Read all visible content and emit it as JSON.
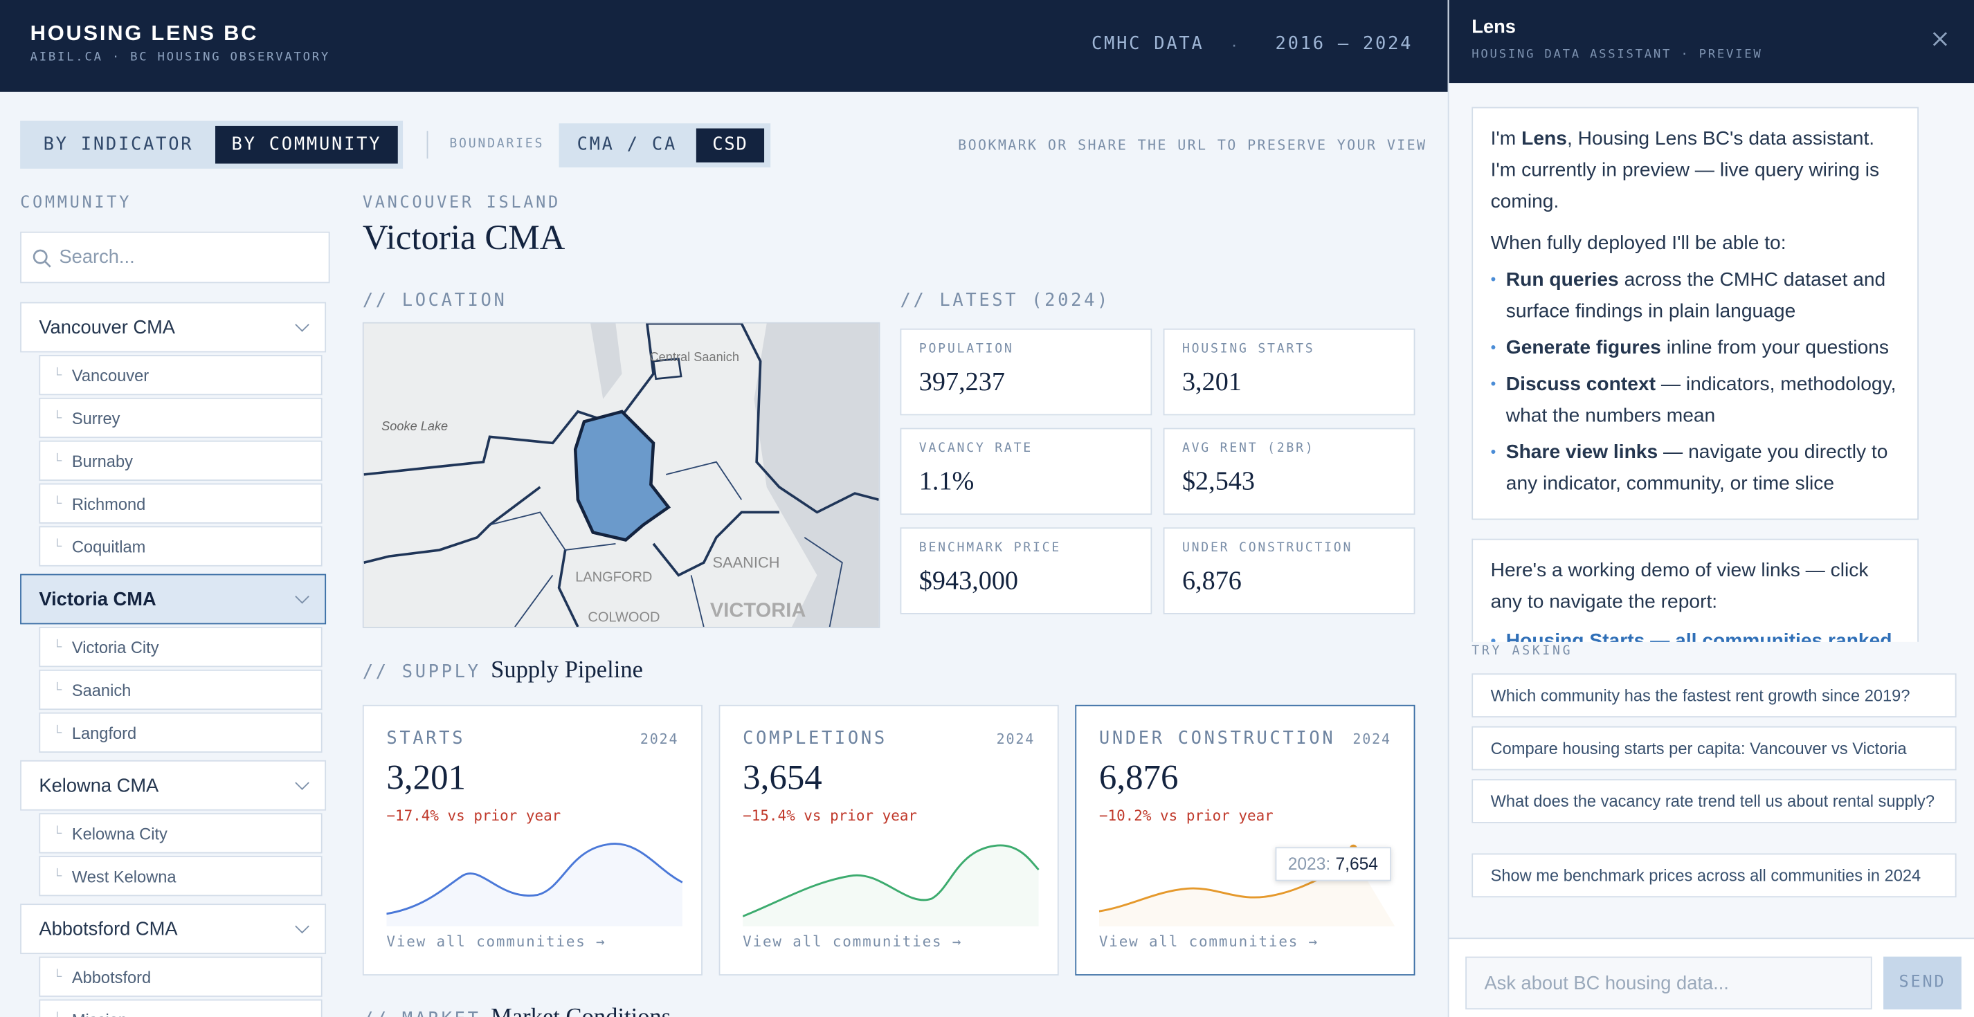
{
  "header": {
    "title": "HOUSING LENS BC",
    "subtitle": "AIBIL.CA · BC HOUSING OBSERVATORY",
    "source": "CMHC DATA",
    "separator": "·",
    "range": "2016 – 2024"
  },
  "toolbar": {
    "view_tabs": [
      "BY INDICATOR",
      "BY COMMUNITY"
    ],
    "boundaries_label": "BOUNDARIES",
    "boundary_tabs": [
      "CMA / CA",
      "CSD"
    ],
    "hint": "BOOKMARK OR SHARE THE URL TO PRESERVE YOUR VIEW"
  },
  "sidebar": {
    "label": "COMMUNITY",
    "search_placeholder": "Search...",
    "groups": [
      {
        "name": "Vancouver CMA",
        "items": [
          "Vancouver",
          "Surrey",
          "Burnaby",
          "Richmond",
          "Coquitlam"
        ]
      },
      {
        "name": "Victoria CMA",
        "items": [
          "Victoria City",
          "Saanich",
          "Langford"
        ]
      },
      {
        "name": "Kelowna CMA",
        "items": [
          "Kelowna City",
          "West Kelowna"
        ]
      },
      {
        "name": "Abbotsford CMA",
        "items": [
          "Abbotsford",
          "Mission"
        ]
      }
    ]
  },
  "region": "VANCOUVER ISLAND",
  "title": "Victoria CMA",
  "location": {
    "heading": "// LOCATION",
    "map_labels": [
      "Central Saanich",
      "Sooke Lake",
      "LANGFORD",
      "SAANICH",
      "COLWOOD",
      "VICTORIA"
    ]
  },
  "latest": {
    "heading": "// LATEST (2024)",
    "stats": [
      {
        "label": "POPULATION",
        "value": "397,237"
      },
      {
        "label": "HOUSING STARTS",
        "value": "3,201"
      },
      {
        "label": "VACANCY RATE",
        "value": "1.1%"
      },
      {
        "label": "AVG RENT (2BR)",
        "value": "$2,543"
      },
      {
        "label": "BENCHMARK PRICE",
        "value": "$943,000"
      },
      {
        "label": "UNDER CONSTRUCTION",
        "value": "6,876"
      }
    ]
  },
  "supply": {
    "prefix": "// SUPPLY",
    "title": "Supply Pipeline",
    "cards": [
      {
        "title": "STARTS",
        "year": "2024",
        "value": "3,201",
        "change": "−17.4% vs prior year",
        "link": "View all communities →"
      },
      {
        "title": "COMPLETIONS",
        "year": "2024",
        "value": "3,654",
        "change": "−15.4% vs prior year",
        "link": "View all communities →"
      },
      {
        "title": "UNDER CONSTRUCTION",
        "year": "2024",
        "value": "6,876",
        "change": "−10.2% vs prior year",
        "link": "View all communities →"
      }
    ],
    "tooltip": {
      "label": "2023:",
      "value": "7,654"
    }
  },
  "market": {
    "prefix": "// MARKET",
    "title": "Market Conditions"
  },
  "assistant": {
    "title": "Lens",
    "subtitle": "HOUSING DATA ASSISTANT · PREVIEW",
    "intro_pre": "I'm",
    "intro_bold": "Lens",
    "intro_post": ", Housing Lens BC's data assistant. I'm currently in preview — live query wiring is coming.",
    "capabilities_heading": "When fully deployed I'll be able to:",
    "bullets": [
      {
        "bold": "Run queries",
        "text": "across the CMHC dataset and surface findings in plain language"
      },
      {
        "bold": "Generate figures",
        "text": "inline from your questions"
      },
      {
        "bold": "Discuss context",
        "text": "— indicators, methodology, what the numbers mean"
      },
      {
        "bold": "Share view links",
        "text": "— navigate you directly to any indicator, community, or time slice"
      }
    ],
    "demo_text": "Here's a working demo of view links — click any to navigate the report:",
    "demo_link": "Housing Starts — all communities ranked",
    "try_label": "TRY ASKING",
    "suggestions": [
      "Which community has the fastest rent growth since 2019?",
      "Compare housing starts per capita: Vancouver vs Victoria",
      "What does the vacancy rate trend tell us about rental supply?",
      "Show me benchmark prices across all communities in 2024"
    ],
    "input_placeholder": "Ask about BC housing data...",
    "send": "SEND"
  }
}
